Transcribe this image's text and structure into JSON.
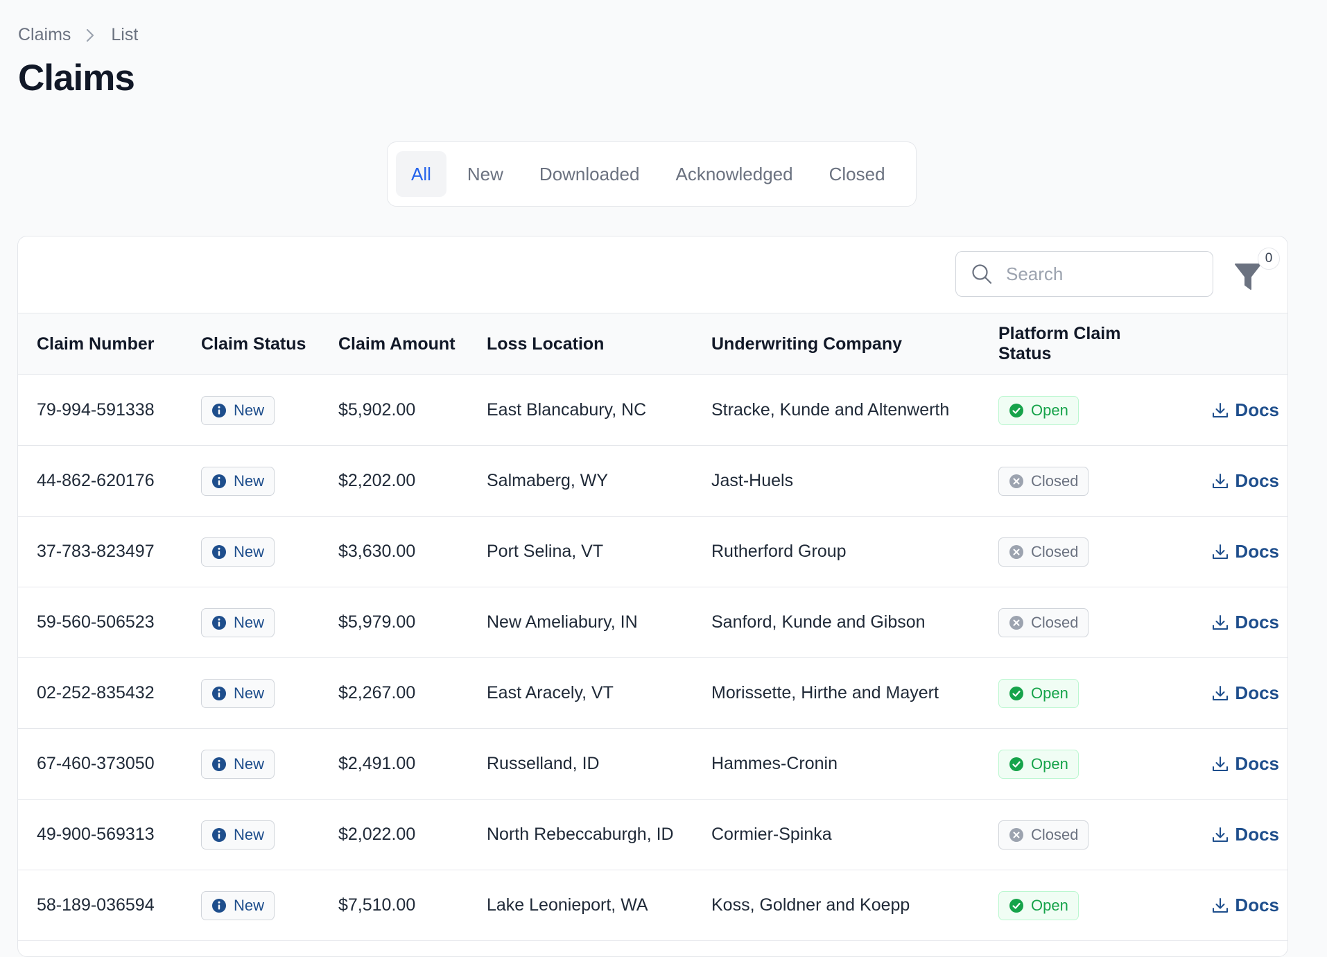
{
  "breadcrumb": {
    "parent": "Claims",
    "current": "List"
  },
  "page_title": "Claims",
  "tabs": [
    {
      "label": "All",
      "active": true
    },
    {
      "label": "New",
      "active": false
    },
    {
      "label": "Downloaded",
      "active": false
    },
    {
      "label": "Acknowledged",
      "active": false
    },
    {
      "label": "Closed",
      "active": false
    }
  ],
  "toolbar": {
    "search_placeholder": "Search",
    "filter_count": "0"
  },
  "table": {
    "columns": [
      "Claim Number",
      "Claim Status",
      "Claim Amount",
      "Loss Location",
      "Underwriting Company",
      "Platform Claim Status"
    ],
    "docs_label": "Docs",
    "rows": [
      {
        "claim_number": "79-994-591338",
        "claim_status": "New",
        "claim_amount": "$5,902.00",
        "loss_location": "East Blancabury, NC",
        "underwriting_company": "Stracke, Kunde and Altenwerth",
        "platform_status": "Open"
      },
      {
        "claim_number": "44-862-620176",
        "claim_status": "New",
        "claim_amount": "$2,202.00",
        "loss_location": "Salmaberg, WY",
        "underwriting_company": "Jast-Huels",
        "platform_status": "Closed"
      },
      {
        "claim_number": "37-783-823497",
        "claim_status": "New",
        "claim_amount": "$3,630.00",
        "loss_location": "Port Selina, VT",
        "underwriting_company": "Rutherford Group",
        "platform_status": "Closed"
      },
      {
        "claim_number": "59-560-506523",
        "claim_status": "New",
        "claim_amount": "$5,979.00",
        "loss_location": "New Ameliabury, IN",
        "underwriting_company": "Sanford, Kunde and Gibson",
        "platform_status": "Closed"
      },
      {
        "claim_number": "02-252-835432",
        "claim_status": "New",
        "claim_amount": "$2,267.00",
        "loss_location": "East Aracely, VT",
        "underwriting_company": "Morissette, Hirthe and Mayert",
        "platform_status": "Open"
      },
      {
        "claim_number": "67-460-373050",
        "claim_status": "New",
        "claim_amount": "$2,491.00",
        "loss_location": "Russelland, ID",
        "underwriting_company": "Hammes-Cronin",
        "platform_status": "Open"
      },
      {
        "claim_number": "49-900-569313",
        "claim_status": "New",
        "claim_amount": "$2,022.00",
        "loss_location": "North Rebeccaburgh, ID",
        "underwriting_company": "Cormier-Spinka",
        "platform_status": "Closed"
      },
      {
        "claim_number": "58-189-036594",
        "claim_status": "New",
        "claim_amount": "$7,510.00",
        "loss_location": "Lake Leonieport, WA",
        "underwriting_company": "Koss, Goldner and Koepp",
        "platform_status": "Open"
      }
    ]
  },
  "colors": {
    "accent": "#2563eb",
    "link": "#1e4e8c",
    "open": "#16a34a",
    "closed": "#6b7280"
  }
}
